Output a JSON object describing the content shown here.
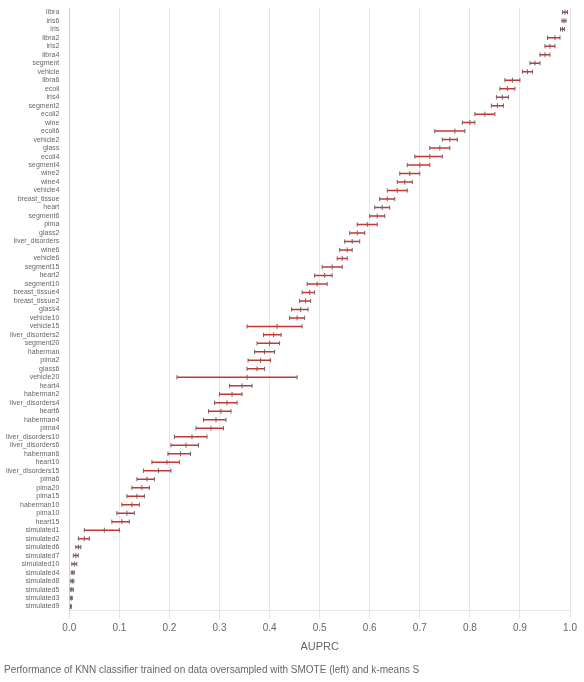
{
  "chart_data": {
    "type": "interval",
    "xlabel": "AUPRC",
    "caption": "Performance of KNN classifier trained on data oversampled with SMOTE (left) and k-means S",
    "categories": [
      "libra",
      "iris6",
      "iris",
      "libra2",
      "iris2",
      "libra4",
      "segment",
      "vehicle",
      "libra6",
      "ecoli",
      "iris4",
      "segment2",
      "ecoli2",
      "wine",
      "ecoli6",
      "vehicle2",
      "glass",
      "ecoli4",
      "segment4",
      "wine2",
      "wine4",
      "vehicle4",
      "breast_tissue",
      "heart",
      "segment6",
      "pima",
      "glass2",
      "liver_disorders",
      "wine6",
      "vehicle6",
      "segment15",
      "heart2",
      "segment10",
      "breast_tissue4",
      "breast_tissue2",
      "glass4",
      "vehicle10",
      "vehicle15",
      "liver_disorders2",
      "segment20",
      "haberman",
      "pima2",
      "glass6",
      "vehicle20",
      "heart4",
      "haberman2",
      "liver_disorders4",
      "heart6",
      "haberman4",
      "pima4",
      "liver_disorders10",
      "liver_disorders6",
      "haberman6",
      "heart10",
      "liver_disorders15",
      "pima6",
      "pima20",
      "pima15",
      "haberman10",
      "pima10",
      "heart15",
      "simulated1",
      "simulated2",
      "simulated6",
      "simulated7",
      "simulated10",
      "simulated4",
      "simulated8",
      "simulated5",
      "simulated3",
      "simulated9"
    ],
    "values": [
      0.99,
      0.988,
      0.985,
      0.97,
      0.96,
      0.95,
      0.93,
      0.915,
      0.885,
      0.875,
      0.865,
      0.855,
      0.83,
      0.8,
      0.77,
      0.76,
      0.74,
      0.72,
      0.7,
      0.68,
      0.67,
      0.655,
      0.635,
      0.625,
      0.615,
      0.595,
      0.575,
      0.565,
      0.555,
      0.545,
      0.525,
      0.51,
      0.495,
      0.48,
      0.472,
      0.462,
      0.455,
      0.415,
      0.408,
      0.4,
      0.39,
      0.382,
      0.375,
      0.355,
      0.345,
      0.325,
      0.315,
      0.303,
      0.293,
      0.283,
      0.245,
      0.233,
      0.222,
      0.195,
      0.178,
      0.155,
      0.145,
      0.135,
      0.125,
      0.115,
      0.105,
      0.07,
      0.03,
      0.018,
      0.013,
      0.01,
      0.007,
      0.006,
      0.005,
      0.004,
      0.003
    ],
    "errors_low": [
      0.005,
      0.004,
      0.004,
      0.015,
      0.01,
      0.01,
      0.01,
      0.01,
      0.015,
      0.015,
      0.012,
      0.012,
      0.02,
      0.015,
      0.04,
      0.015,
      0.02,
      0.03,
      0.025,
      0.02,
      0.015,
      0.02,
      0.015,
      0.015,
      0.015,
      0.02,
      0.015,
      0.015,
      0.015,
      0.01,
      0.02,
      0.02,
      0.02,
      0.015,
      0.012,
      0.018,
      0.015,
      0.06,
      0.02,
      0.025,
      0.02,
      0.025,
      0.02,
      0.14,
      0.025,
      0.025,
      0.025,
      0.025,
      0.025,
      0.03,
      0.035,
      0.03,
      0.025,
      0.03,
      0.03,
      0.02,
      0.02,
      0.02,
      0.02,
      0.02,
      0.02,
      0.04,
      0.012,
      0.005,
      0.005,
      0.005,
      0.003,
      0.003,
      0.003,
      0.002,
      0.001
    ],
    "errors_high": [
      0.005,
      0.004,
      0.004,
      0.01,
      0.01,
      0.01,
      0.01,
      0.01,
      0.015,
      0.015,
      0.012,
      0.012,
      0.02,
      0.01,
      0.02,
      0.015,
      0.02,
      0.025,
      0.02,
      0.02,
      0.015,
      0.02,
      0.015,
      0.015,
      0.015,
      0.02,
      0.015,
      0.015,
      0.01,
      0.01,
      0.02,
      0.015,
      0.02,
      0.01,
      0.01,
      0.015,
      0.015,
      0.05,
      0.015,
      0.02,
      0.02,
      0.02,
      0.015,
      0.1,
      0.02,
      0.02,
      0.02,
      0.02,
      0.02,
      0.025,
      0.03,
      0.025,
      0.02,
      0.025,
      0.025,
      0.015,
      0.015,
      0.015,
      0.015,
      0.015,
      0.015,
      0.03,
      0.01,
      0.005,
      0.005,
      0.005,
      0.003,
      0.003,
      0.003,
      0.002,
      0.001
    ],
    "color": "#cc3333",
    "xlim": [
      0.0,
      1.0
    ],
    "xticks": [
      {
        "value": 0.0,
        "label": "0.0"
      },
      0.1,
      0.2,
      0.3,
      0.4,
      0.5,
      0.6,
      0.7,
      0.8,
      0.9,
      {
        "value": 1.0,
        "label": "1.0"
      }
    ],
    "grid": "x"
  }
}
